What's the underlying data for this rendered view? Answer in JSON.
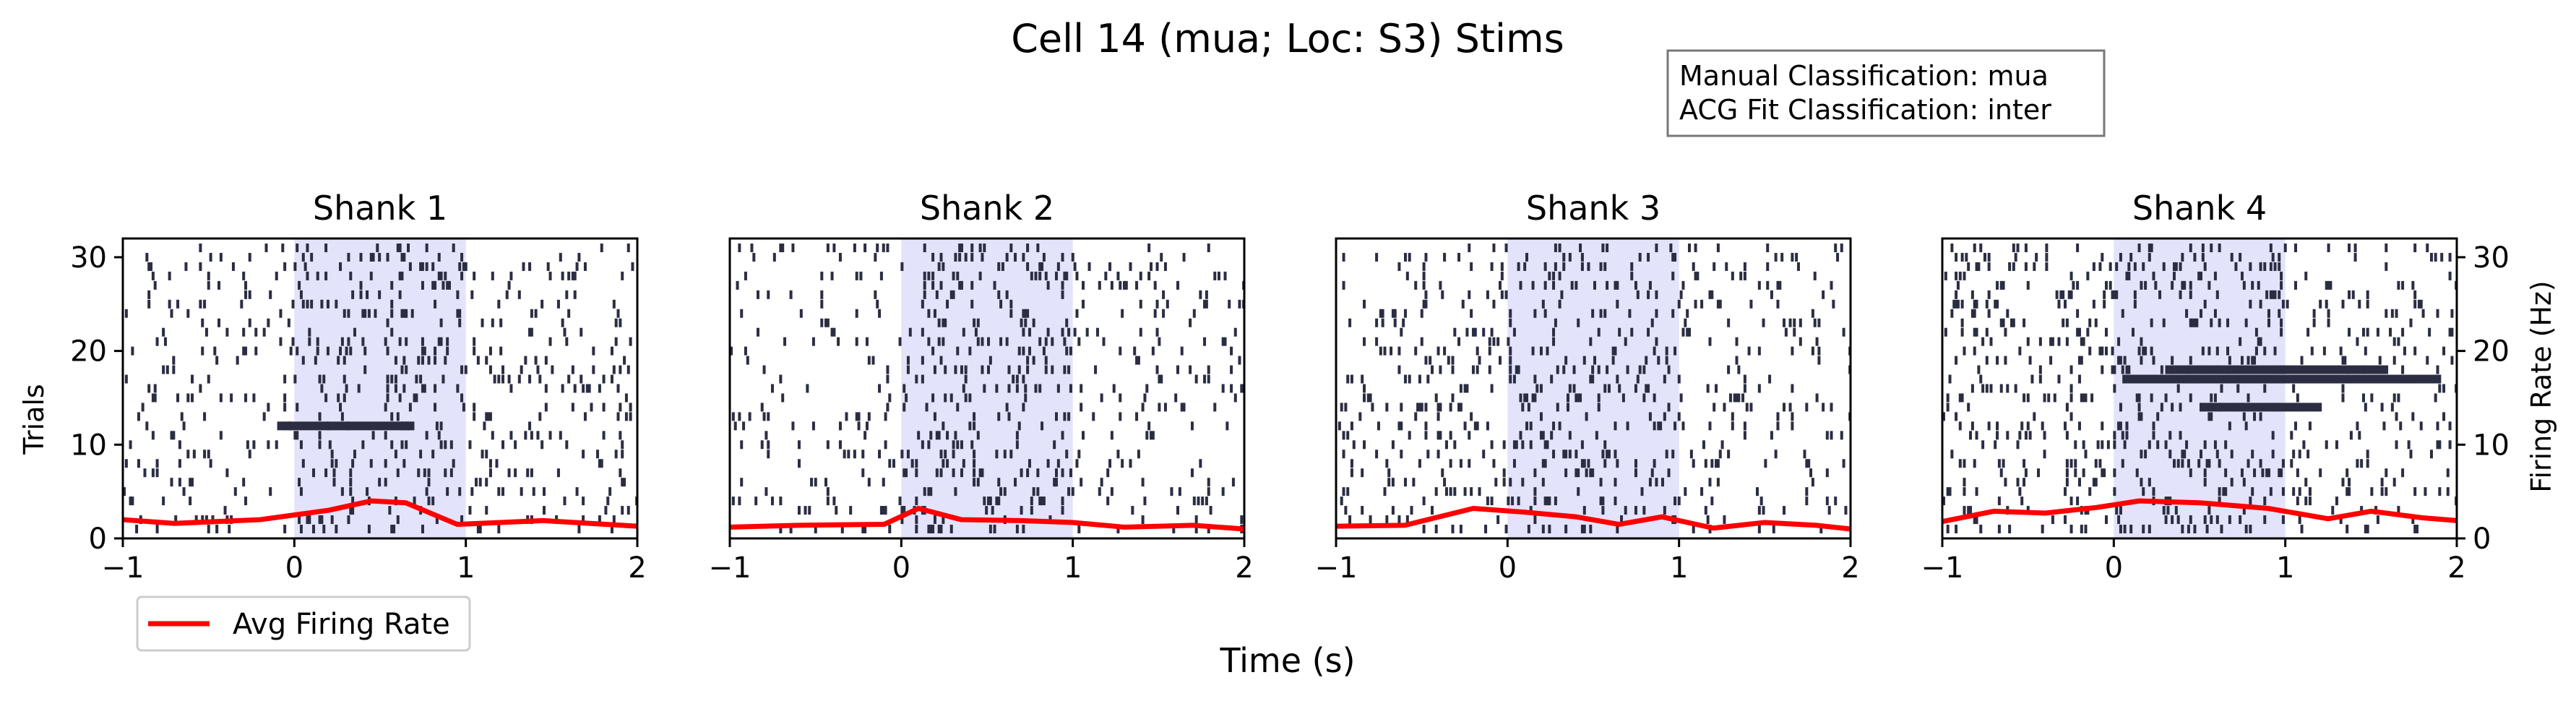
{
  "figure": {
    "title": "Cell 14 (mua; Loc: S3) Stims",
    "xlabel": "Time (s)",
    "ylabel_left": "Trials",
    "ylabel_right": "Firing Rate (Hz)",
    "info_lines": [
      "Manual Classification: mua",
      "ACG Fit Classification: inter"
    ],
    "legend_label": "Avg Firing Rate",
    "colors": {
      "spike": "#2b2d42",
      "rate": "#ff0000",
      "stim_shade": "#e3e3fb"
    }
  },
  "chart_data": [
    {
      "type": "raster",
      "title": "Shank 1",
      "xlim": [
        -1,
        2
      ],
      "ylim": [
        0,
        32
      ],
      "x_ticks": [
        "−1",
        "0",
        "1",
        "2"
      ],
      "y_ticks": [
        "0",
        "10",
        "20",
        "30"
      ],
      "stim_window": [
        0,
        1
      ],
      "spike_density": [
        0.06,
        0.09,
        0.06
      ],
      "dense_rows": [
        {
          "trial": 12,
          "x": [
            -0.1,
            0.7
          ]
        }
      ],
      "rate_series": {
        "name": "Avg Firing Rate",
        "x": [
          -1,
          -0.7,
          -0.2,
          0.2,
          0.45,
          0.65,
          0.95,
          1.45,
          2
        ],
        "y": [
          2.0,
          1.6,
          2.0,
          3.0,
          4.0,
          3.8,
          1.5,
          1.9,
          1.3
        ]
      }
    },
    {
      "type": "raster",
      "title": "Shank 2",
      "xlim": [
        -1,
        2
      ],
      "ylim": [
        0,
        32
      ],
      "x_ticks": [
        "−1",
        "0",
        "1",
        "2"
      ],
      "y_ticks": [],
      "stim_window": [
        0,
        1
      ],
      "spike_density": [
        0.05,
        0.1,
        0.05
      ],
      "dense_rows": [],
      "rate_series": {
        "name": "Avg Firing Rate",
        "x": [
          -1,
          -0.6,
          -0.1,
          0.1,
          0.35,
          0.7,
          1.0,
          1.3,
          1.7,
          2
        ],
        "y": [
          1.2,
          1.4,
          1.5,
          3.2,
          2.0,
          1.9,
          1.7,
          1.2,
          1.4,
          1.0
        ]
      }
    },
    {
      "type": "raster",
      "title": "Shank 3",
      "xlim": [
        -1,
        2
      ],
      "ylim": [
        0,
        32
      ],
      "x_ticks": [
        "−1",
        "0",
        "1",
        "2"
      ],
      "y_ticks": [],
      "stim_window": [
        0,
        1
      ],
      "spike_density": [
        0.07,
        0.09,
        0.06
      ],
      "dense_rows": [],
      "rate_series": {
        "name": "Avg Firing Rate",
        "x": [
          -1,
          -0.6,
          -0.2,
          0.1,
          0.4,
          0.65,
          0.9,
          1.2,
          1.5,
          1.8,
          2
        ],
        "y": [
          1.3,
          1.4,
          3.2,
          2.8,
          2.3,
          1.5,
          2.3,
          1.1,
          1.7,
          1.4,
          1.0
        ]
      }
    },
    {
      "type": "raster",
      "title": "Shank 4",
      "xlim": [
        -1,
        2
      ],
      "ylim": [
        0,
        32
      ],
      "x_ticks": [
        "−1",
        "0",
        "1",
        "2"
      ],
      "y_ticks": [
        "0",
        "10",
        "20",
        "30"
      ],
      "stim_window": [
        0,
        1
      ],
      "spike_density": [
        0.08,
        0.11,
        0.07
      ],
      "dense_rows": [
        {
          "trial": 17,
          "x": [
            0.05,
            1.9
          ]
        },
        {
          "trial": 18,
          "x": [
            0.3,
            1.6
          ]
        },
        {
          "trial": 14,
          "x": [
            0.5,
            1.2
          ]
        }
      ],
      "rate_series": {
        "name": "Avg Firing Rate",
        "x": [
          -1,
          -0.7,
          -0.4,
          -0.1,
          0.15,
          0.5,
          0.9,
          1.25,
          1.5,
          1.8,
          2
        ],
        "y": [
          1.8,
          2.9,
          2.7,
          3.3,
          4.0,
          3.8,
          3.2,
          2.1,
          2.9,
          2.2,
          1.9
        ]
      }
    }
  ]
}
